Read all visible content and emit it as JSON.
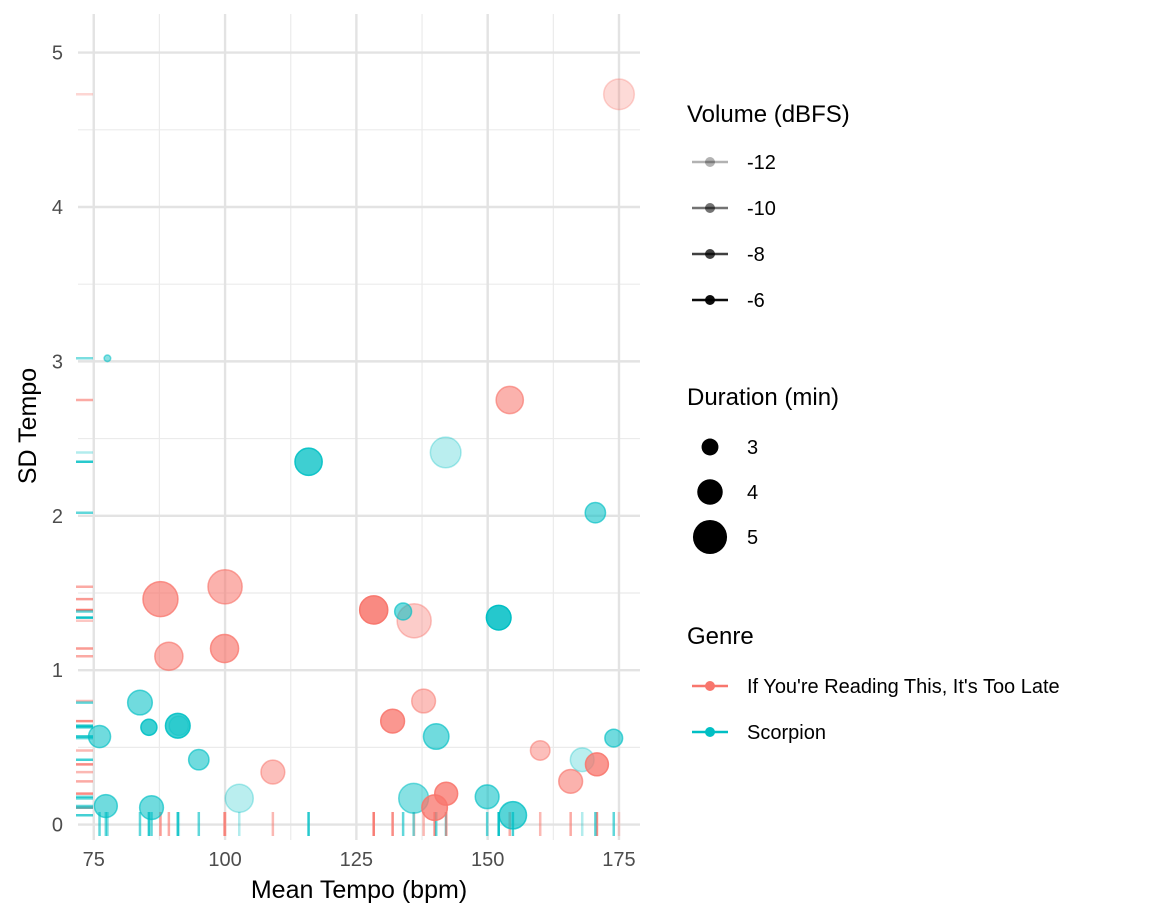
{
  "chart_data": {
    "type": "scatter",
    "xlabel": "Mean Tempo (bpm)",
    "ylabel": "SD Tempo",
    "xlim": [
      72,
      179
    ],
    "ylim": [
      -0.1,
      5.25
    ],
    "x_ticks": [
      75,
      100,
      125,
      150,
      175
    ],
    "x_tick_labels": [
      "75",
      "100",
      "125",
      "150",
      "175"
    ],
    "y_ticks": [
      0,
      1,
      2,
      3,
      4,
      5
    ],
    "y_tick_labels": [
      "0",
      "1",
      "2",
      "3",
      "4",
      "5"
    ],
    "grid": true,
    "rug": true,
    "legend_position": "right",
    "colors": {
      "If You're Reading This, It's Too Late": "#F8766D",
      "Scorpion": "#00BFC4"
    },
    "legends": {
      "volume": {
        "title": "Volume (dBFS)",
        "items": [
          {
            "label": "-12",
            "alpha": 0.3
          },
          {
            "label": "-10",
            "alpha": 0.55
          },
          {
            "label": "-8",
            "alpha": 0.75
          },
          {
            "label": "-6",
            "alpha": 0.95
          }
        ]
      },
      "duration": {
        "title": "Duration (min)",
        "items": [
          {
            "label": "3",
            "value": 3
          },
          {
            "label": "4",
            "value": 4
          },
          {
            "label": "5",
            "value": 5
          }
        ]
      },
      "genre": {
        "title": "Genre",
        "items": [
          {
            "label": "If You're Reading This, It's Too Late",
            "color": "#F8766D"
          },
          {
            "label": "Scorpion",
            "color": "#00BFC4"
          }
        ]
      }
    },
    "series": [
      {
        "name": "If You're Reading This, It's Too Late",
        "color": "#F8766D",
        "points": [
          {
            "x": 175,
            "y": 4.73,
            "duration": 4.6,
            "volume": -12
          },
          {
            "x": 154.2,
            "y": 2.75,
            "duration": 4.2,
            "volume": -9
          },
          {
            "x": 100,
            "y": 1.54,
            "duration": 5.0,
            "volume": -9
          },
          {
            "x": 87.7,
            "y": 1.46,
            "duration": 5.1,
            "volume": -8
          },
          {
            "x": 128.3,
            "y": 1.39,
            "duration": 4.3,
            "volume": -6
          },
          {
            "x": 136,
            "y": 1.32,
            "duration": 5.0,
            "volume": -11
          },
          {
            "x": 99.9,
            "y": 1.14,
            "duration": 4.3,
            "volume": -8
          },
          {
            "x": 89.3,
            "y": 1.09,
            "duration": 4.3,
            "volume": -9
          },
          {
            "x": 137.8,
            "y": 0.8,
            "duration": 3.8,
            "volume": -10
          },
          {
            "x": 131.9,
            "y": 0.67,
            "duration": 3.8,
            "volume": -7
          },
          {
            "x": 160,
            "y": 0.48,
            "duration": 3.3,
            "volume": -10
          },
          {
            "x": 170.8,
            "y": 0.39,
            "duration": 3.7,
            "volume": -7
          },
          {
            "x": 109.1,
            "y": 0.34,
            "duration": 3.8,
            "volume": -10
          },
          {
            "x": 165.8,
            "y": 0.28,
            "duration": 3.8,
            "volume": -9
          },
          {
            "x": 142.1,
            "y": 0.2,
            "duration": 3.7,
            "volume": -7
          },
          {
            "x": 139.9,
            "y": 0.11,
            "duration": 4.0,
            "volume": -7
          }
        ]
      },
      {
        "name": "Scorpion",
        "color": "#00BFC4",
        "points": [
          {
            "x": 77.6,
            "y": 3.02,
            "duration": 1.8,
            "volume": -10
          },
          {
            "x": 115.9,
            "y": 2.35,
            "duration": 4.2,
            "volume": -7
          },
          {
            "x": 142,
            "y": 2.41,
            "duration": 4.6,
            "volume": -12
          },
          {
            "x": 170.5,
            "y": 2.02,
            "duration": 3.4,
            "volume": -9
          },
          {
            "x": 133.9,
            "y": 1.38,
            "duration": 3.0,
            "volume": -9
          },
          {
            "x": 152.1,
            "y": 1.34,
            "duration": 3.9,
            "volume": -6
          },
          {
            "x": 83.8,
            "y": 0.79,
            "duration": 3.9,
            "volume": -9
          },
          {
            "x": 91.2,
            "y": 0.64,
            "duration": 3.3,
            "volume": -12
          },
          {
            "x": 91,
            "y": 0.64,
            "duration": 3.9,
            "volume": -7
          },
          {
            "x": 85.5,
            "y": 0.63,
            "duration": 2.9,
            "volume": -7
          },
          {
            "x": 76.1,
            "y": 0.57,
            "duration": 3.6,
            "volume": -9
          },
          {
            "x": 140.2,
            "y": 0.57,
            "duration": 4.0,
            "volume": -9
          },
          {
            "x": 174,
            "y": 0.56,
            "duration": 3.1,
            "volume": -9
          },
          {
            "x": 95,
            "y": 0.42,
            "duration": 3.4,
            "volume": -9
          },
          {
            "x": 168,
            "y": 0.42,
            "duration": 3.8,
            "volume": -12
          },
          {
            "x": 102.7,
            "y": 0.17,
            "duration": 4.3,
            "volume": -12
          },
          {
            "x": 135.9,
            "y": 0.17,
            "duration": 4.5,
            "volume": -10
          },
          {
            "x": 77.3,
            "y": 0.12,
            "duration": 3.7,
            "volume": -9
          },
          {
            "x": 86,
            "y": 0.11,
            "duration": 3.8,
            "volume": -9
          },
          {
            "x": 149.9,
            "y": 0.18,
            "duration": 3.8,
            "volume": -9
          },
          {
            "x": 154.8,
            "y": 0.06,
            "duration": 4.2,
            "volume": -8
          }
        ]
      }
    ]
  }
}
